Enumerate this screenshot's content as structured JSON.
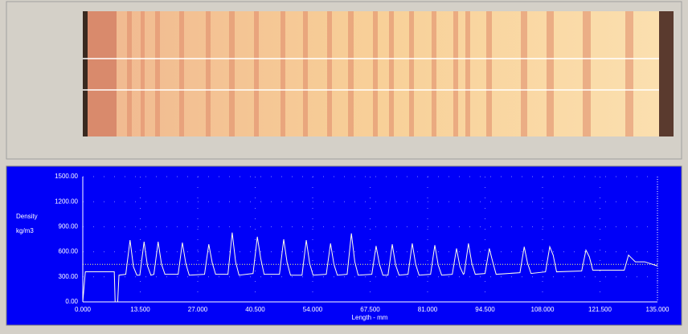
{
  "chart_data": {
    "type": "line",
    "ylabel": "Density",
    "yunit": "kg/m3",
    "xlabel": "Length - mm",
    "color": "#ffffe8",
    "grid": true,
    "reference_line": 450,
    "xlim": [
      0,
      135
    ],
    "ylim": [
      0,
      1500
    ],
    "xticks": [
      {
        "value": 0,
        "label": "0.000"
      },
      {
        "value": 13.5,
        "label": "13.500"
      },
      {
        "value": 27,
        "label": "27.000"
      },
      {
        "value": 40.5,
        "label": "40.500"
      },
      {
        "value": 54,
        "label": "54.000"
      },
      {
        "value": 67.5,
        "label": "67.500"
      },
      {
        "value": 81,
        "label": "81.000"
      },
      {
        "value": 94.5,
        "label": "94.500"
      },
      {
        "value": 108,
        "label": "108.000"
      },
      {
        "value": 121.5,
        "label": "121.500"
      },
      {
        "value": 135,
        "label": "135.000"
      }
    ],
    "yticks": [
      {
        "value": 0,
        "label": "0.00"
      },
      {
        "value": 300,
        "label": "300.00"
      },
      {
        "value": 600,
        "label": "600.00"
      },
      {
        "value": 900,
        "label": "900.00"
      },
      {
        "value": 1200,
        "label": "1200.00"
      },
      {
        "value": 1500,
        "label": "1500.00"
      }
    ],
    "x": [
      0,
      0.6,
      7.4,
      7.6,
      8.2,
      8.5,
      10.1,
      11.1,
      11.9,
      12.7,
      13.4,
      14.4,
      15.2,
      16.0,
      16.7,
      17.7,
      18.5,
      19.3,
      22.4,
      23.4,
      24.2,
      25.0,
      28.6,
      29.6,
      30.4,
      31.2,
      34.1,
      35.1,
      35.9,
      36.7,
      40.0,
      41.0,
      41.8,
      42.6,
      46.2,
      47.2,
      48.0,
      48.8,
      51.5,
      52.5,
      53.3,
      54.1,
      57.2,
      58.2,
      59.0,
      59.8,
      62.1,
      63.1,
      63.9,
      64.7,
      67.9,
      68.9,
      69.7,
      70.5,
      71.7,
      72.7,
      73.5,
      74.3,
      76.4,
      77.4,
      78.2,
      79.0,
      81.7,
      82.7,
      83.5,
      84.3,
      86.8,
      87.8,
      88.6,
      89.4,
      89.6,
      90.6,
      91.4,
      92.2,
      94.5,
      95.5,
      96.3,
      97.1,
      102.7,
      103.7,
      104.5,
      105.3,
      108.7,
      109.7,
      110.5,
      111.3,
      117.2,
      118.2,
      119.0,
      119.8,
      127.2,
      128.2,
      129.0,
      129.8,
      132,
      135
    ],
    "values": [
      0,
      360,
      360,
      0,
      0,
      320,
      330,
      740,
      420,
      320,
      320,
      720,
      430,
      320,
      330,
      720,
      450,
      330,
      330,
      710,
      460,
      320,
      330,
      690,
      470,
      330,
      330,
      830,
      480,
      320,
      340,
      780,
      520,
      330,
      330,
      750,
      470,
      320,
      320,
      740,
      460,
      320,
      330,
      700,
      450,
      320,
      330,
      820,
      480,
      320,
      330,
      670,
      450,
      320,
      320,
      690,
      440,
      320,
      330,
      700,
      450,
      320,
      330,
      680,
      440,
      320,
      330,
      640,
      420,
      330,
      340,
      700,
      460,
      330,
      340,
      640,
      480,
      330,
      350,
      660,
      460,
      340,
      360,
      660,
      560,
      360,
      370,
      620,
      540,
      380,
      380,
      560,
      520,
      480,
      480,
      430
    ]
  }
}
